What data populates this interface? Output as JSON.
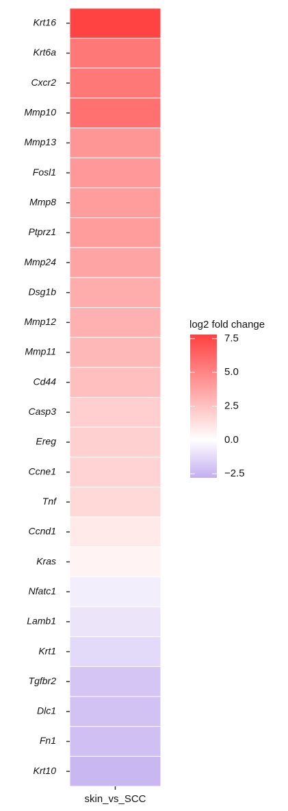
{
  "chart_data": {
    "type": "heatmap",
    "categories": [
      "Krt16",
      "Krt6a",
      "Cxcr2",
      "Mmp10",
      "Mmp13",
      "Fosl1",
      "Mmp8",
      "Ptprz1",
      "Mmp24",
      "Dsg1b",
      "Mmp12",
      "Mmp11",
      "Cd44",
      "Casp3",
      "Ereg",
      "Ccne1",
      "Tnf",
      "Ccnd1",
      "Kras",
      "Nfatc1",
      "Lamb1",
      "Krt1",
      "Tgfbr2",
      "Dlc1",
      "Fn1",
      "Krt10"
    ],
    "x": [
      "skin_vs_SCC"
    ],
    "values": [
      7.7,
      5.5,
      5.5,
      5.8,
      4.3,
      4.2,
      4.0,
      4.0,
      3.7,
      3.4,
      3.2,
      2.9,
      2.6,
      2.0,
      1.9,
      1.8,
      1.6,
      0.9,
      0.5,
      -0.6,
      -0.9,
      -1.3,
      -2.0,
      -2.1,
      -2.2,
      -2.5
    ],
    "legend_title": "log2 fold change",
    "clim": [
      -2.8,
      7.8
    ],
    "cticks": [
      7.5,
      {
        "value": 5,
        "label": "5.0"
      },
      2.5,
      {
        "value": 0,
        "label": "0.0"
      },
      {
        "value": -2.5,
        "label": "−2.5"
      }
    ],
    "colors": {
      "low": "#c3aef0",
      "mid": "#ffffff",
      "high": "#ff4040"
    }
  }
}
